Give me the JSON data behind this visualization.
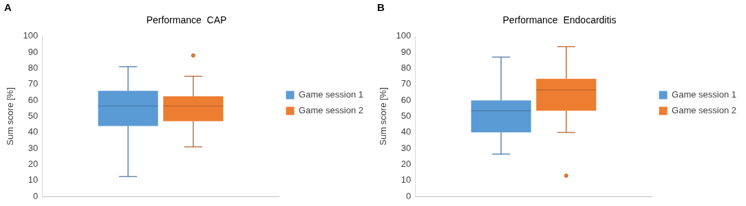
{
  "chart_data": [
    {
      "type": "box",
      "title": "Performance  CAP",
      "ylabel": "Sum score [%]",
      "annotations": [
        "A"
      ],
      "categories": [
        null
      ],
      "series": [
        {
          "name": "Game session 1",
          "color": "#5b9bd5",
          "boxes": [
            {
              "low": 12.5,
              "q1": 44,
              "median": 56.5,
              "q3": 66,
              "high": 81
            }
          ]
        },
        {
          "name": "Game session 2",
          "color": "#ed7d31",
          "boxes": [
            {
              "low": 31,
              "q1": 47,
              "median": 56.5,
              "q3": 62.5,
              "high": 75,
              "outliers": [
                88
              ]
            }
          ]
        }
      ],
      "ylim": [
        0,
        100
      ],
      "yticks": [
        0,
        10,
        20,
        30,
        40,
        50,
        60,
        70,
        80,
        90,
        100
      ],
      "tick_labels": "y",
      "grid": false,
      "legend": "right"
    },
    {
      "type": "box",
      "title": "Performance  Endocarditis",
      "ylabel": "Sum score [%]",
      "annotations": [
        "B"
      ],
      "categories": [
        null
      ],
      "series": [
        {
          "name": "Game session 1",
          "color": "#5b9bd5",
          "boxes": [
            {
              "low": 26.5,
              "q1": 40,
              "median": 53.5,
              "q3": 60,
              "high": 87
            }
          ]
        },
        {
          "name": "Game session 2",
          "color": "#ed7d31",
          "boxes": [
            {
              "low": 40,
              "q1": 53.5,
              "median": 66.5,
              "q3": 73.5,
              "high": 93.5,
              "outliers": [
                13
              ]
            }
          ]
        }
      ],
      "ylim": [
        0,
        100
      ],
      "yticks": [
        0,
        10,
        20,
        30,
        40,
        50,
        60,
        70,
        80,
        90,
        100
      ],
      "tick_labels": "y",
      "grid": false,
      "legend": "right"
    }
  ]
}
